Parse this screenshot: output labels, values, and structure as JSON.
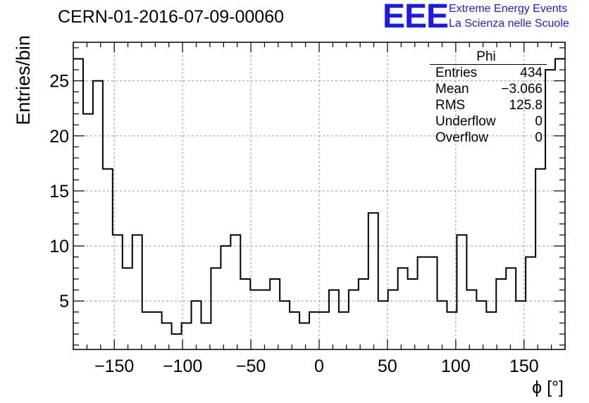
{
  "header": {
    "title": "CERN-01-2016-07-09-00060"
  },
  "logo": {
    "text": "EEE",
    "line1": "Extreme Energy Events",
    "line2": "La Scienza nelle Scuole",
    "color": "#1a1af0"
  },
  "stats_box": {
    "title": "Phi",
    "rows": [
      {
        "label": "Entries",
        "value": "434"
      },
      {
        "label": "Mean",
        "value": "−3.066"
      },
      {
        "label": "RMS",
        "value": "125.8"
      },
      {
        "label": "Underflow",
        "value": "0"
      },
      {
        "label": "Overflow",
        "value": "0"
      }
    ]
  },
  "chart_data": {
    "type": "bar",
    "style": "histogram-step",
    "xlabel": "ϕ [°]",
    "ylabel": "Entries/bin",
    "xlim": [
      -180,
      180
    ],
    "ylim": [
      0.6,
      28.5
    ],
    "bin_width": 7.2,
    "x_ticks": [
      -150,
      -100,
      -50,
      0,
      50,
      100,
      150
    ],
    "x_tick_labels": [
      "−150",
      "−100",
      "−50",
      "0",
      "50",
      "100",
      "150"
    ],
    "y_ticks": [
      5,
      10,
      15,
      20,
      25
    ],
    "y_tick_labels": [
      "5",
      "10",
      "15",
      "20",
      "25"
    ],
    "grid": true,
    "bin_edges_start": -180,
    "values": [
      27,
      22,
      25,
      17,
      11,
      8,
      11,
      4,
      4,
      3,
      2,
      3,
      5,
      3,
      8,
      10,
      11,
      7,
      6,
      6,
      7,
      5,
      4,
      3,
      4,
      4,
      6,
      4,
      6,
      7,
      13,
      5,
      6,
      8,
      7,
      9,
      9,
      5,
      4,
      11,
      6,
      5,
      4,
      7,
      8,
      5,
      9,
      17,
      26,
      27
    ]
  }
}
